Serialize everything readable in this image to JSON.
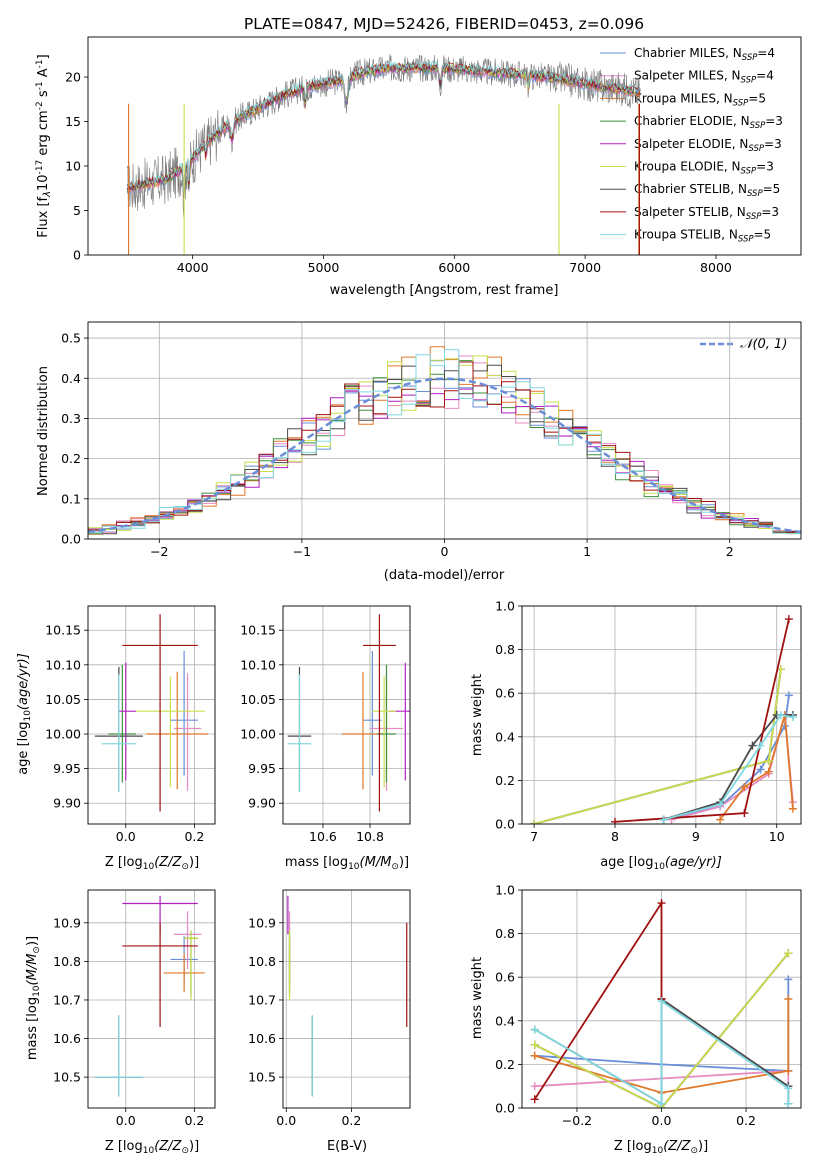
{
  "colors": {
    "chabrier_miles": "#6a8fd8",
    "salpeter_miles": "#e58cc0",
    "kroupa_miles": "#e0782a",
    "chabrier_elodie": "#3f8f3f",
    "salpeter_elodie": "#b020c0",
    "kroupa_elodie": "#c8e04a",
    "chabrier_stelib": "#4a4a4a",
    "salpeter_stelib": "#a01010",
    "kroupa_stelib": "#80d8e0",
    "gaussian": "#6a8fd8",
    "grid": "#b0b0b0"
  },
  "legend": {
    "series": [
      {
        "key": "chabrier_miles",
        "label": "Chabrier MILES, N",
        "sub": "SSP",
        "suffix": "=4"
      },
      {
        "key": "salpeter_miles",
        "label": "Salpeter MILES, N",
        "sub": "SSP",
        "suffix": "=4"
      },
      {
        "key": "kroupa_miles",
        "label": "Kroupa MILES, N",
        "sub": "SSP",
        "suffix": "=5"
      },
      {
        "key": "chabrier_elodie",
        "label": "Chabrier ELODIE, N",
        "sub": "SSP",
        "suffix": "=3"
      },
      {
        "key": "salpeter_elodie",
        "label": "Salpeter ELODIE, N",
        "sub": "SSP",
        "suffix": "=3"
      },
      {
        "key": "kroupa_elodie",
        "label": "Kroupa ELODIE, N",
        "sub": "SSP",
        "suffix": "=3"
      },
      {
        "key": "chabrier_stelib",
        "label": "Chabrier STELIB, N",
        "sub": "SSP",
        "suffix": "=5"
      },
      {
        "key": "salpeter_stelib",
        "label": "Salpeter STELIB, N",
        "sub": "SSP",
        "suffix": "=3"
      },
      {
        "key": "kroupa_stelib",
        "label": "Kroupa STELIB, N",
        "sub": "SSP",
        "suffix": "=5"
      }
    ],
    "gaussian_label": "𝒩(0, 1)"
  },
  "chart_data": [
    {
      "id": "spectrum",
      "type": "line",
      "title": "PLATE=0847, MJD=52426, FIBERID=0453, z=0.096",
      "xlabel": "wavelength [Angstrom, rest frame]",
      "ylabel_main": "Flux [f",
      "ylabel_lambda": "λ",
      "ylabel_rest": "10",
      "ylabel_exp": "-17",
      "ylabel_unit": " erg cm",
      "ylabel_exp2": "-2",
      "ylabel_unit2": " s",
      "ylabel_exp3": "-1",
      "ylabel_unit3": " A",
      "ylabel_exp4": "-1",
      "ylabel_close": "]",
      "xlim": [
        3200,
        8650
      ],
      "ylim": [
        0,
        24.5
      ],
      "xticks": [
        4000,
        5000,
        6000,
        7000,
        8000
      ],
      "yticks": [
        0,
        5,
        10,
        15,
        20
      ],
      "continuum_x": [
        3500,
        3650,
        3800,
        3950,
        4100,
        4300,
        4500,
        4700,
        4900,
        5100,
        5300,
        5500,
        5700,
        5900,
        6100,
        6300,
        6500,
        6700,
        6900,
        7100,
        7300,
        7420
      ],
      "continuum_y": [
        7.5,
        8.0,
        8.5,
        10.0,
        12.5,
        15.0,
        16.5,
        18.0,
        19.0,
        19.5,
        20.5,
        21.0,
        21.0,
        21.0,
        20.8,
        20.5,
        20.3,
        20.0,
        19.5,
        19.0,
        18.6,
        18.2
      ]
    },
    {
      "id": "residuals",
      "type": "line",
      "xlabel": "(data-model)/error",
      "ylabel": "Normed distribution",
      "xlim": [
        -2.5,
        2.5
      ],
      "ylim": [
        0,
        0.54
      ],
      "xticks": [
        -2,
        -1,
        0,
        1,
        2
      ],
      "yticks": [
        0.0,
        0.1,
        0.2,
        0.3,
        0.4,
        0.5
      ],
      "gaussian": {
        "mu": 0,
        "sigma": 1
      }
    },
    {
      "id": "z_age",
      "type": "scatter",
      "xlabel": "Z [log",
      "xlabel_sub": "10",
      "xlabel_rest": "(Z/Z",
      "xlabel_sun": "⊙",
      "xlabel_close": ")]",
      "ylabel": "age  [log",
      "ylabel_sub": "10",
      "ylabel_rest": "(age/yr)]",
      "xlim": [
        -0.11,
        0.26
      ],
      "ylim": [
        9.87,
        10.185
      ],
      "xticks": [
        0.0,
        0.2
      ],
      "yticks": [
        9.9,
        9.95,
        10.0,
        10.05,
        10.1,
        10.15
      ],
      "points": [
        {
          "key": "chabrier_miles",
          "x": 0.17,
          "y": 10.02,
          "xerr": [
            0.04,
            0.04
          ],
          "yerr": [
            0.08,
            0.1
          ]
        },
        {
          "key": "salpeter_miles",
          "x": 0.18,
          "y": 10.008,
          "xerr": [
            0.04,
            0.04
          ],
          "yerr": [
            0.09,
            0.08
          ]
        },
        {
          "key": "kroupa_miles",
          "x": 0.15,
          "y": 10.0,
          "xerr": [
            0.09,
            0.09
          ],
          "yerr": [
            0.08,
            0.09
          ]
        },
        {
          "key": "chabrier_elodie",
          "x": -0.01,
          "y": 10.0,
          "xerr": [
            0.04,
            0.04
          ],
          "yerr": [
            0.07,
            0.1
          ]
        },
        {
          "key": "salpeter_elodie",
          "x": 0.0,
          "y": 10.033,
          "xerr": [
            0.02,
            0.03
          ],
          "yerr": [
            0.1,
            0.07
          ]
        },
        {
          "key": "kroupa_elodie",
          "x": 0.13,
          "y": 10.033,
          "xerr": [
            0.1,
            0.1
          ],
          "yerr": [
            0.11,
            0.05
          ]
        },
        {
          "key": "chabrier_stelib",
          "x": -0.02,
          "y": 9.997,
          "xerr": [
            0.07,
            0.07
          ],
          "yerr": [
            0.08,
            0.1
          ]
        },
        {
          "key": "salpeter_stelib",
          "x": 0.1,
          "y": 10.128,
          "xerr": [
            0.11,
            0.11
          ],
          "yerr": [
            0.24,
            0.045
          ]
        },
        {
          "key": "kroupa_stelib",
          "x": -0.02,
          "y": 9.986,
          "xerr": [
            0.05,
            0.05
          ],
          "yerr": [
            0.07,
            0.1
          ]
        }
      ]
    },
    {
      "id": "mass_age",
      "type": "scatter",
      "xlabel": "mass [log",
      "xlabel_sub": "10",
      "xlabel_rest": "(M/M",
      "xlabel_sun": "⊙",
      "xlabel_close": ")]",
      "xlim": [
        10.43,
        10.97
      ],
      "ylim": [
        9.87,
        10.185
      ],
      "xticks": [
        10.6,
        10.8
      ],
      "yticks": [
        9.9,
        9.95,
        10.0,
        10.05,
        10.1,
        10.15
      ],
      "points": [
        {
          "key": "chabrier_miles",
          "x": 10.81,
          "y": 10.02,
          "xerr": [
            0.04,
            0.04
          ],
          "yerr": [
            0.08,
            0.1
          ]
        },
        {
          "key": "salpeter_miles",
          "x": 10.87,
          "y": 10.008,
          "xerr": [
            0.07,
            0.07
          ],
          "yerr": [
            0.09,
            0.08
          ]
        },
        {
          "key": "kroupa_miles",
          "x": 10.77,
          "y": 10.0,
          "xerr": [
            0.09,
            0.09
          ],
          "yerr": [
            0.08,
            0.09
          ]
        },
        {
          "key": "chabrier_elodie",
          "x": 10.87,
          "y": 10.0,
          "xerr": [
            0.04,
            0.04
          ],
          "yerr": [
            0.07,
            0.1
          ]
        },
        {
          "key": "salpeter_elodie",
          "x": 10.95,
          "y": 10.033,
          "xerr": [
            0.07,
            0.07
          ],
          "yerr": [
            0.1,
            0.07
          ]
        },
        {
          "key": "kroupa_elodie",
          "x": 10.86,
          "y": 10.033,
          "xerr": [
            0.05,
            0.05
          ],
          "yerr": [
            0.11,
            0.05
          ]
        },
        {
          "key": "chabrier_stelib",
          "x": 10.5,
          "y": 9.997,
          "xerr": [
            0.05,
            0.05
          ],
          "yerr": [
            0.08,
            0.1
          ]
        },
        {
          "key": "salpeter_stelib",
          "x": 10.84,
          "y": 10.128,
          "xerr": [
            0.07,
            0.07
          ],
          "yerr": [
            0.24,
            0.045
          ]
        },
        {
          "key": "kroupa_stelib",
          "x": 10.5,
          "y": 9.986,
          "xerr": [
            0.05,
            0.05
          ],
          "yerr": [
            0.07,
            0.1
          ]
        }
      ]
    },
    {
      "id": "age_weight",
      "type": "line",
      "xlabel": "age  [log",
      "xlabel_sub": "10",
      "xlabel_rest": "(age/yr)]",
      "ylabel": "mass weight",
      "xlim": [
        6.85,
        10.3
      ],
      "ylim": [
        0,
        1.0
      ],
      "xticks": [
        7,
        8,
        9,
        10
      ],
      "yticks": [
        0.0,
        0.2,
        0.4,
        0.6,
        0.8,
        1.0
      ],
      "series": [
        {
          "key": "chabrier_miles",
          "x": [
            8.6,
            9.3,
            9.8,
            10.1,
            10.15
          ],
          "y": [
            0.02,
            0.08,
            0.25,
            0.45,
            0.59
          ]
        },
        {
          "key": "salpeter_miles",
          "x": [
            8.7,
            9.3,
            9.9,
            10.1,
            10.2
          ],
          "y": [
            0.02,
            0.08,
            0.23,
            0.5,
            0.1
          ]
        },
        {
          "key": "kroupa_miles",
          "x": [
            9.3,
            9.6,
            9.9,
            10.1,
            10.2
          ],
          "y": [
            0.02,
            0.17,
            0.24,
            0.5,
            0.07
          ]
        },
        {
          "key": "chabrier_elodie",
          "x": [
            7.0,
            9.9,
            10.05
          ],
          "y": [
            0.0,
            0.29,
            0.71
          ]
        },
        {
          "key": "salpeter_elodie",
          "x": [
            7.0,
            9.9,
            10.05
          ],
          "y": [
            0.0,
            0.29,
            0.71
          ]
        },
        {
          "key": "kroupa_elodie",
          "x": [
            7.0,
            9.9,
            10.05
          ],
          "y": [
            0.0,
            0.29,
            0.71
          ]
        },
        {
          "key": "chabrier_stelib",
          "x": [
            8.6,
            9.3,
            9.7,
            10.0,
            10.2
          ],
          "y": [
            0.02,
            0.1,
            0.36,
            0.5,
            0.5
          ]
        },
        {
          "key": "salpeter_stelib",
          "x": [
            8.0,
            9.6,
            10.15
          ],
          "y": [
            0.01,
            0.05,
            0.94
          ]
        },
        {
          "key": "kroupa_stelib",
          "x": [
            8.6,
            9.3,
            9.8,
            10.05,
            10.2
          ],
          "y": [
            0.02,
            0.09,
            0.36,
            0.5,
            0.49
          ]
        }
      ]
    },
    {
      "id": "z_mass",
      "type": "scatter",
      "xlabel": "Z [log",
      "xlabel_sub": "10",
      "xlabel_rest": "(Z/Z",
      "xlabel_sun": "⊙",
      "xlabel_close": ")]",
      "ylabel": "mass [log",
      "ylabel_sub": "10",
      "ylabel_rest": "(M/M",
      "ylabel_sun": "⊙",
      "ylabel_close": ")]",
      "xlim": [
        -0.11,
        0.26
      ],
      "ylim": [
        10.42,
        10.985
      ],
      "xticks": [
        0.0,
        0.2
      ],
      "yticks": [
        10.5,
        10.6,
        10.7,
        10.8,
        10.9
      ],
      "points": [
        {
          "key": "chabrier_miles",
          "x": 0.17,
          "y": 10.805,
          "xerr": [
            0.04,
            0.04
          ],
          "yerr": [
            0.06,
            0.06
          ]
        },
        {
          "key": "salpeter_miles",
          "x": 0.18,
          "y": 10.87,
          "xerr": [
            0.04,
            0.04
          ],
          "yerr": [
            0.09,
            0.06
          ]
        },
        {
          "key": "kroupa_miles",
          "x": 0.17,
          "y": 10.77,
          "xerr": [
            0.06,
            0.06
          ],
          "yerr": [
            0.05,
            0.05
          ]
        },
        {
          "key": "chabrier_elodie",
          "x": 0.19,
          "y": 10.86,
          "xerr": [
            0.02,
            0.02
          ],
          "yerr": [
            0.15,
            0.02
          ]
        },
        {
          "key": "salpeter_elodie",
          "x": 0.1,
          "y": 10.95,
          "xerr": [
            0.11,
            0.11
          ],
          "yerr": [
            0.08,
            0.02
          ]
        },
        {
          "key": "kroupa_elodie",
          "x": 0.19,
          "y": 10.86,
          "xerr": [
            0.02,
            0.02
          ],
          "yerr": [
            0.16,
            0.02
          ]
        },
        {
          "key": "chabrier_stelib",
          "x": -0.02,
          "y": 10.5,
          "xerr": [
            0.07,
            0.07
          ],
          "yerr": [
            0.05,
            0.16
          ]
        },
        {
          "key": "salpeter_stelib",
          "x": 0.1,
          "y": 10.84,
          "xerr": [
            0.11,
            0.11
          ],
          "yerr": [
            0.21,
            0.06
          ]
        },
        {
          "key": "kroupa_stelib",
          "x": -0.02,
          "y": 10.5,
          "xerr": [
            0.07,
            0.07
          ],
          "yerr": [
            0.05,
            0.16
          ]
        }
      ]
    },
    {
      "id": "ebv_mass",
      "type": "scatter",
      "xlabel": "E(B-V)",
      "xlim": [
        -0.01,
        0.38
      ],
      "ylim": [
        10.42,
        10.985
      ],
      "xticks": [
        0.0,
        0.2
      ],
      "yticks": [
        10.5,
        10.6,
        10.7,
        10.8,
        10.9
      ],
      "points": [
        {
          "key": "chabrier_miles",
          "x": 0.01,
          "y": 10.805,
          "yerr": [
            0.06,
            0.06
          ]
        },
        {
          "key": "salpeter_miles",
          "x": 0.01,
          "y": 10.87,
          "yerr": [
            0.09,
            0.06
          ]
        },
        {
          "key": "kroupa_miles",
          "x": 0.01,
          "y": 10.77,
          "yerr": [
            0.05,
            0.05
          ]
        },
        {
          "key": "chabrier_elodie",
          "x": 0.01,
          "y": 10.86,
          "yerr": [
            0.15,
            0.02
          ]
        },
        {
          "key": "salpeter_elodie",
          "x": 0.005,
          "y": 10.95,
          "yerr": [
            0.08,
            0.02
          ]
        },
        {
          "key": "kroupa_elodie",
          "x": 0.01,
          "y": 10.86,
          "yerr": [
            0.16,
            0.02
          ]
        },
        {
          "key": "chabrier_stelib",
          "x": 0.08,
          "y": 10.5,
          "yerr": [
            0.05,
            0.16
          ]
        },
        {
          "key": "salpeter_stelib",
          "x": 0.37,
          "y": 10.84,
          "yerr": [
            0.21,
            0.06
          ]
        },
        {
          "key": "kroupa_stelib",
          "x": 0.08,
          "y": 10.5,
          "yerr": [
            0.05,
            0.16
          ]
        }
      ]
    },
    {
      "id": "z_weight",
      "type": "line",
      "xlabel": "Z [log",
      "xlabel_sub": "10",
      "xlabel_rest": "(Z/Z",
      "xlabel_sun": "⊙",
      "xlabel_close": ")]",
      "ylabel": "mass weight",
      "xlim": [
        -0.33,
        0.33
      ],
      "ylim": [
        0,
        1.0
      ],
      "xticks": [
        -0.2,
        0.0,
        0.2
      ],
      "yticks": [
        0.0,
        0.2,
        0.4,
        0.6,
        0.8,
        1.0
      ],
      "series": [
        {
          "key": "chabrier_miles",
          "x": [
            -0.3,
            0.0,
            0.3,
            0.3
          ],
          "y": [
            0.24,
            0.2,
            0.17,
            0.59
          ]
        },
        {
          "key": "salpeter_miles",
          "x": [
            -0.3,
            0.3,
            0.3
          ],
          "y": [
            0.1,
            0.17,
            0.1
          ]
        },
        {
          "key": "kroupa_miles",
          "x": [
            -0.3,
            0.0,
            0.3,
            0.3
          ],
          "y": [
            0.24,
            0.07,
            0.17,
            0.5
          ]
        },
        {
          "key": "chabrier_elodie",
          "x": [
            -0.3,
            0.0,
            0.3
          ],
          "y": [
            0.29,
            0.0,
            0.71
          ]
        },
        {
          "key": "salpeter_elodie",
          "x": [
            -0.3,
            0.0,
            0.3
          ],
          "y": [
            0.29,
            0.0,
            0.71
          ]
        },
        {
          "key": "kroupa_elodie",
          "x": [
            -0.3,
            0.0,
            0.3
          ],
          "y": [
            0.29,
            0.0,
            0.71
          ]
        },
        {
          "key": "chabrier_stelib",
          "x": [
            -0.3,
            0.0,
            0.0,
            0.3,
            0.3
          ],
          "y": [
            0.36,
            0.02,
            0.5,
            0.1,
            0.02
          ]
        },
        {
          "key": "salpeter_stelib",
          "x": [
            -0.3,
            0.0,
            0.0
          ],
          "y": [
            0.04,
            0.94,
            0.5
          ]
        },
        {
          "key": "kroupa_stelib",
          "x": [
            -0.3,
            0.0,
            0.0,
            0.3,
            0.3
          ],
          "y": [
            0.36,
            0.02,
            0.49,
            0.09,
            0.02
          ]
        }
      ]
    }
  ]
}
